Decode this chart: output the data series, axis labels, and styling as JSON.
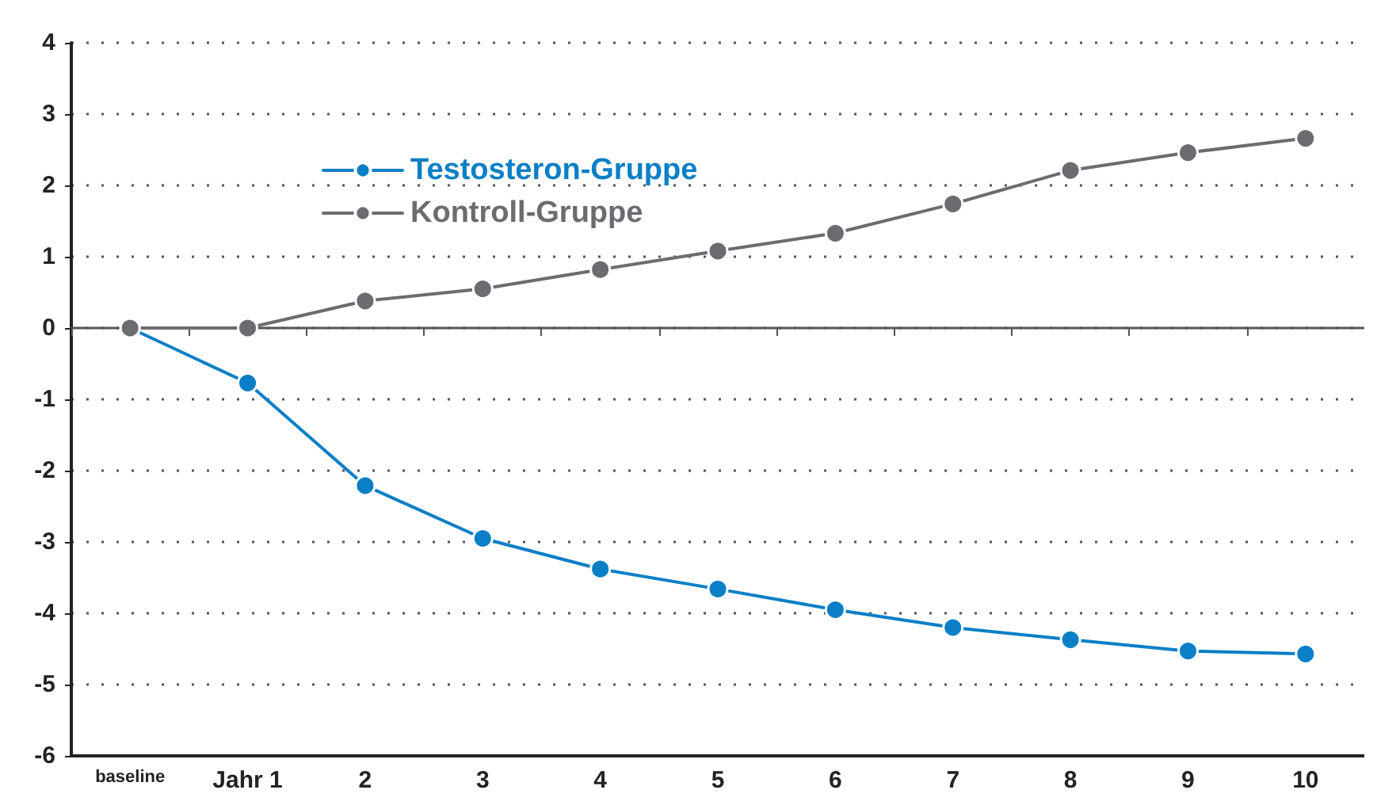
{
  "chart_data": {
    "type": "line",
    "categories": [
      "baseline",
      "Jahr 1",
      "2",
      "3",
      "4",
      "5",
      "6",
      "7",
      "8",
      "9",
      "10"
    ],
    "series": [
      {
        "name": "Testosteron-Gruppe",
        "color": "#0a7fc7",
        "values": [
          0,
          -0.77,
          -2.21,
          -2.95,
          -3.38,
          -3.66,
          -3.95,
          -4.2,
          -4.37,
          -4.53,
          -4.57
        ]
      },
      {
        "name": "Kontroll-Gruppe",
        "color": "#6b6b70",
        "values": [
          0,
          0,
          0.38,
          0.55,
          0.82,
          1.08,
          1.33,
          1.74,
          2.21,
          2.46,
          2.66
        ]
      }
    ],
    "ylim": [
      -6,
      4
    ],
    "yticks": [
      -6,
      -5,
      -4,
      -3,
      -2,
      -1,
      0,
      1,
      2,
      3,
      4
    ],
    "grid": "y",
    "legend": "top left",
    "marker": "circle",
    "line_style": "solid"
  }
}
